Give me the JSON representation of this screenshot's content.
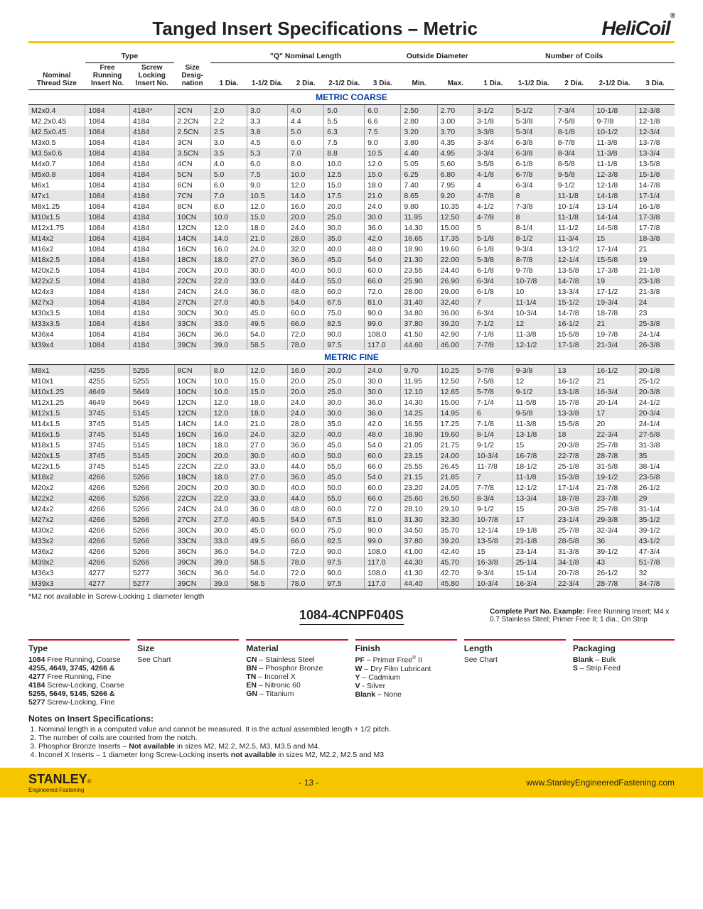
{
  "header": {
    "title": "Tanged Insert Specifications – Metric",
    "brand": "HeliCoil",
    "brand_reg": "®"
  },
  "table": {
    "group_headers": [
      "Type",
      "\"Q\" Nominal Length",
      "Outside Diameter",
      "Number of Coils"
    ],
    "col_headers": {
      "nominal": "Nominal Thread Size",
      "free": "Free Running Insert No.",
      "screw": "Screw Locking Insert No.",
      "size": "Size Desig- nation",
      "d1": "1 Dia.",
      "d15": "1-1/2 Dia.",
      "d2": "2 Dia.",
      "d25": "2-1/2 Dia.",
      "d3": "3 Dia.",
      "min": "Min.",
      "max": "Max.",
      "c1": "1 Dia.",
      "c15": "1-1/2 Dia.",
      "c2": "2 Dia.",
      "c25": "2-1/2 Dia.",
      "c3": "3 Dia."
    },
    "section1": "METRIC COARSE",
    "section2": "METRIC FINE",
    "coarse": [
      [
        "M2x0.4",
        "1084",
        "4184*",
        "2CN",
        "2.0",
        "3.0",
        "4.0",
        "5.0",
        "6.0",
        "2.50",
        "2.70",
        "3-1/2",
        "5-1/2",
        "7-3/4",
        "10-1/8",
        "12-3/8"
      ],
      [
        "M2.2x0.45",
        "1084",
        "4184",
        "2.2CN",
        "2.2",
        "3.3",
        "4.4",
        "5.5",
        "6.6",
        "2.80",
        "3.00",
        "3-1/8",
        "5-3/8",
        "7-5/8",
        "9-7/8",
        "12-1/8"
      ],
      [
        "M2.5x0.45",
        "1084",
        "4184",
        "2.5CN",
        "2.5",
        "3.8",
        "5.0",
        "6.3",
        "7.5",
        "3.20",
        "3.70",
        "3-3/8",
        "5-3/4",
        "8-1/8",
        "10-1/2",
        "12-3/4"
      ],
      [
        "M3x0.5",
        "1084",
        "4184",
        "3CN",
        "3.0",
        "4.5",
        "6.0",
        "7.5",
        "9.0",
        "3.80",
        "4.35",
        "3-3/4",
        "6-3/8",
        "8-7/8",
        "11-3/8",
        "13-7/8"
      ],
      [
        "M3.5x0.6",
        "1084",
        "4184",
        "3.5CN",
        "3.5",
        "5.3",
        "7.0",
        "8.8",
        "10.5",
        "4.40",
        "4.95",
        "3-3/4",
        "6-3/8",
        "8-3/4",
        "11-3/8",
        "13-3/4"
      ],
      [
        "M4x0.7",
        "1084",
        "4184",
        "4CN",
        "4.0",
        "6.0",
        "8.0",
        "10.0",
        "12.0",
        "5.05",
        "5.60",
        "3-5/8",
        "6-1/8",
        "8-5/8",
        "11-1/8",
        "13-5/8"
      ],
      [
        "M5x0.8",
        "1084",
        "4184",
        "5CN",
        "5.0",
        "7.5",
        "10.0",
        "12.5",
        "15.0",
        "6.25",
        "6.80",
        "4-1/8",
        "6-7/8",
        "9-5/8",
        "12-3/8",
        "15-1/8"
      ],
      [
        "M6x1",
        "1084",
        "4184",
        "6CN",
        "6.0",
        "9.0",
        "12.0",
        "15.0",
        "18.0",
        "7.40",
        "7.95",
        "4",
        "6-3/4",
        "9-1/2",
        "12-1/8",
        "14-7/8"
      ],
      [
        "M7x1",
        "1084",
        "4184",
        "7CN",
        "7.0",
        "10.5",
        "14.0",
        "17.5",
        "21.0",
        "8.65",
        "9.20",
        "4-7/8",
        "8",
        "11-1/8",
        "14-1/8",
        "17-1/4"
      ],
      [
        "M8x1.25",
        "1084",
        "4184",
        "8CN",
        "8.0",
        "12.0",
        "16.0",
        "20.0",
        "24.0",
        "9.80",
        "10.35",
        "4-1/2",
        "7-3/8",
        "10-1/4",
        "13-1/4",
        "16-1/8"
      ],
      [
        "M10x1.5",
        "1084",
        "4184",
        "10CN",
        "10.0",
        "15.0",
        "20.0",
        "25.0",
        "30.0",
        "11.95",
        "12.50",
        "4-7/8",
        "8",
        "11-1/8",
        "14-1/4",
        "17-3/8"
      ],
      [
        "M12x1.75",
        "1084",
        "4184",
        "12CN",
        "12.0",
        "18.0",
        "24.0",
        "30.0",
        "36.0",
        "14.30",
        "15.00",
        "5",
        "8-1/4",
        "11-1/2",
        "14-5/8",
        "17-7/8"
      ],
      [
        "M14x2",
        "1084",
        "4184",
        "14CN",
        "14.0",
        "21.0",
        "28.0",
        "35.0",
        "42.0",
        "16.65",
        "17.35",
        "5-1/8",
        "8-1/2",
        "11-3/4",
        "15",
        "18-3/8"
      ],
      [
        "M16x2",
        "1084",
        "4184",
        "16CN",
        "16.0",
        "24.0",
        "32.0",
        "40.0",
        "48.0",
        "18.90",
        "19.60",
        "6-1/8",
        "9-3/4",
        "13-1/2",
        "17-1/4",
        "21"
      ],
      [
        "M18x2.5",
        "1084",
        "4184",
        "18CN",
        "18.0",
        "27.0",
        "36.0",
        "45.0",
        "54.0",
        "21.30",
        "22.00",
        "5-3/8",
        "8-7/8",
        "12-1/4",
        "15-5/8",
        "19"
      ],
      [
        "M20x2.5",
        "1084",
        "4184",
        "20CN",
        "20.0",
        "30.0",
        "40.0",
        "50.0",
        "60.0",
        "23.55",
        "24.40",
        "6-1/8",
        "9-7/8",
        "13-5/8",
        "17-3/8",
        "21-1/8"
      ],
      [
        "M22x2.5",
        "1084",
        "4184",
        "22CN",
        "22.0",
        "33.0",
        "44.0",
        "55.0",
        "66.0",
        "25.90",
        "26.90",
        "6-3/4",
        "10-7/8",
        "14-7/8",
        "19",
        "23-1/8"
      ],
      [
        "M24x3",
        "1084",
        "4184",
        "24CN",
        "24.0",
        "36.0",
        "48.0",
        "60.0",
        "72.0",
        "28.00",
        "29.00",
        "6-1/8",
        "10",
        "13-3/4",
        "17-1/2",
        "21-3/8"
      ],
      [
        "M27x3",
        "1084",
        "4184",
        "27CN",
        "27.0",
        "40.5",
        "54.0",
        "67.5",
        "81.0",
        "31.40",
        "32.40",
        "7",
        "11-1/4",
        "15-1/2",
        "19-3/4",
        "24"
      ],
      [
        "M30x3.5",
        "1084",
        "4184",
        "30CN",
        "30.0",
        "45.0",
        "60.0",
        "75.0",
        "90.0",
        "34.80",
        "36.00",
        "6-3/4",
        "10-3/4",
        "14-7/8",
        "18-7/8",
        "23"
      ],
      [
        "M33x3.5",
        "1084",
        "4184",
        "33CN",
        "33.0",
        "49.5",
        "66.0",
        "82.5",
        "99.0",
        "37.80",
        "39.20",
        "7-1/2",
        "12",
        "16-1/2",
        "21",
        "25-3/8"
      ],
      [
        "M36x4",
        "1084",
        "4184",
        "36CN",
        "36.0",
        "54.0",
        "72.0",
        "90.0",
        "108.0",
        "41.50",
        "42.90",
        "7-1/8",
        "11-3/8",
        "15-5/8",
        "19-7/8",
        "24-1/4"
      ],
      [
        "M39x4",
        "1084",
        "4184",
        "39CN",
        "39.0",
        "58.5",
        "78.0",
        "97.5",
        "117.0",
        "44.60",
        "46.00",
        "7-7/8",
        "12-1/2",
        "17-1/8",
        "21-3/4",
        "26-3/8"
      ]
    ],
    "fine": [
      [
        "M8x1",
        "4255",
        "5255",
        "8CN",
        "8.0",
        "12.0",
        "16.0",
        "20.0",
        "24.0",
        "9.70",
        "10.25",
        "5-7/8",
        "9-3/8",
        "13",
        "16-1/2",
        "20-1/8"
      ],
      [
        "M10x1",
        "4255",
        "5255",
        "10CN",
        "10.0",
        "15.0",
        "20.0",
        "25.0",
        "30.0",
        "11.95",
        "12.50",
        "7-5/8",
        "12",
        "16-1/2",
        "21",
        "25-1/2"
      ],
      [
        "M10x1.25",
        "4649",
        "5649",
        "10CN",
        "10.0",
        "15.0",
        "20.0",
        "25.0",
        "30.0",
        "12.10",
        "12.65",
        "5-7/8",
        "9-1/2",
        "13-1/8",
        "16-3/4",
        "20-3/8"
      ],
      [
        "M12x1.25",
        "4649",
        "5649",
        "12CN",
        "12.0",
        "18.0",
        "24.0",
        "30.0",
        "36.0",
        "14.30",
        "15.00",
        "7-1/4",
        "11-5/8",
        "15-7/8",
        "20-1/4",
        "24-1/2"
      ],
      [
        "M12x1.5",
        "3745",
        "5145",
        "12CN",
        "12.0",
        "18.0",
        "24.0",
        "30.0",
        "36.0",
        "14.25",
        "14.95",
        "6",
        "9-5/8",
        "13-3/8",
        "17",
        "20-3/4"
      ],
      [
        "M14x1.5",
        "3745",
        "5145",
        "14CN",
        "14.0",
        "21.0",
        "28.0",
        "35.0",
        "42.0",
        "16.55",
        "17.25",
        "7-1/8",
        "11-3/8",
        "15-5/8",
        "20",
        "24-1/4"
      ],
      [
        "M16x1.5",
        "3745",
        "5145",
        "16CN",
        "16.0",
        "24.0",
        "32.0",
        "40.0",
        "48.0",
        "18.90",
        "19.60",
        "8-1/4",
        "13-1/8",
        "18",
        "22-3/4",
        "27-5/8"
      ],
      [
        "M18x1.5",
        "3745",
        "5145",
        "18CN",
        "18.0",
        "27.0",
        "36.0",
        "45.0",
        "54.0",
        "21.05",
        "21.75",
        "9-1/2",
        "15",
        "20-3/8",
        "25-7/8",
        "31-3/8"
      ],
      [
        "M20x1.5",
        "3745",
        "5145",
        "20CN",
        "20.0",
        "30.0",
        "40.0",
        "50.0",
        "60.0",
        "23.15",
        "24.00",
        "10-3/4",
        "16-7/8",
        "22-7/8",
        "28-7/8",
        "35"
      ],
      [
        "M22x1.5",
        "3745",
        "5145",
        "22CN",
        "22.0",
        "33.0",
        "44.0",
        "55.0",
        "66.0",
        "25.55",
        "26.45",
        "11-7/8",
        "18-1/2",
        "25-1/8",
        "31-5/8",
        "38-1/4"
      ],
      [
        "M18x2",
        "4266",
        "5266",
        "18CN",
        "18.0",
        "27.0",
        "36.0",
        "45.0",
        "54.0",
        "21.15",
        "21.85",
        "7",
        "11-1/8",
        "15-3/8",
        "19-1/2",
        "23-5/8"
      ],
      [
        "M20x2",
        "4266",
        "5266",
        "20CN",
        "20.0",
        "30.0",
        "40.0",
        "50.0",
        "60.0",
        "23.20",
        "24.05",
        "7-7/8",
        "12-1/2",
        "17-1/4",
        "21-7/8",
        "26-1/2"
      ],
      [
        "M22x2",
        "4266",
        "5266",
        "22CN",
        "22.0",
        "33.0",
        "44.0",
        "55.0",
        "66.0",
        "25.60",
        "26.50",
        "8-3/4",
        "13-3/4",
        "18-7/8",
        "23-7/8",
        "29"
      ],
      [
        "M24x2",
        "4266",
        "5266",
        "24CN",
        "24.0",
        "36.0",
        "48.0",
        "60.0",
        "72.0",
        "28.10",
        "29.10",
        "9-1/2",
        "15",
        "20-3/8",
        "25-7/8",
        "31-1/4"
      ],
      [
        "M27x2",
        "4266",
        "5266",
        "27CN",
        "27.0",
        "40.5",
        "54.0",
        "67.5",
        "81.0",
        "31.30",
        "32.30",
        "10-7/8",
        "17",
        "23-1/4",
        "29-3/8",
        "35-1/2"
      ],
      [
        "M30x2",
        "4266",
        "5266",
        "30CN",
        "30.0",
        "45.0",
        "60.0",
        "75.0",
        "90.0",
        "34.50",
        "35.70",
        "12-1/4",
        "19-1/8",
        "25-7/8",
        "32-3/4",
        "39-1/2"
      ],
      [
        "M33x2",
        "4266",
        "5266",
        "33CN",
        "33.0",
        "49.5",
        "66.0",
        "82.5",
        "99.0",
        "37.80",
        "39.20",
        "13-5/8",
        "21-1/8",
        "28-5/8",
        "36",
        "43-1/2"
      ],
      [
        "M36x2",
        "4266",
        "5266",
        "36CN",
        "36.0",
        "54.0",
        "72.0",
        "90.0",
        "108.0",
        "41.00",
        "42.40",
        "15",
        "23-1/4",
        "31-3/8",
        "39-1/2",
        "47-3/4"
      ],
      [
        "M39x2",
        "4266",
        "5266",
        "39CN",
        "39.0",
        "58.5",
        "78.0",
        "97.5",
        "117.0",
        "44.30",
        "45.70",
        "16-3/8",
        "25-1/4",
        "34-1/8",
        "43",
        "51-7/8"
      ],
      [
        "M36x3",
        "4277",
        "5277",
        "36CN",
        "36.0",
        "54.0",
        "72.0",
        "90.0",
        "108.0",
        "41.30",
        "42.70",
        "9-3/4",
        "15-1/4",
        "20-7/8",
        "26-1/2",
        "32"
      ],
      [
        "M39x3",
        "4277",
        "5277",
        "39CN",
        "39.0",
        "58.5",
        "78.0",
        "97.5",
        "117.0",
        "44.40",
        "45.80",
        "10-3/4",
        "16-3/4",
        "22-3/4",
        "28-7/8",
        "34-7/8"
      ]
    ],
    "footnote": "*M2 not available in Screw-Locking 1 diameter length"
  },
  "pn": {
    "part_no": "1084-4CNPF040S",
    "example_label": "Complete Part No. Example:",
    "example_text": " Free Running Insert; M4 x 0.7 Stainless Steel; Primer Free II; 1 dia.; On Strip",
    "cols": [
      {
        "head": "Type",
        "rows": [
          "<b>1084</b> Free Running, Coarse",
          "<b>4255, 4649, 3745, 4266 &</b>",
          "<b>4277</b> Free Running, Fine",
          "<b>4184</b> Screw-Locking, Coarse",
          "<b>5255, 5649, 5145, 5266 &</b>",
          "<b>5277</b> Screw-Locking, Fine"
        ]
      },
      {
        "head": "Size",
        "rows": [
          "See Chart"
        ]
      },
      {
        "head": "Material",
        "rows": [
          "<b>CN</b> – Stainless Steel",
          "<b>BN</b> – Phosphor Bronze",
          "<b>TN</b> – Inconel X",
          "<b>EN</b> – Nitronic 60",
          "<b>GN</b> – Titanium"
        ]
      },
      {
        "head": "Finish",
        "rows": [
          "<b>PF</b> – Primer Free<sup class='reg'>®</sup> II",
          "<b>W</b> – Dry Film Lubricant",
          "<b>Y</b> – Cadmium",
          "<b>V</b> - Silver",
          "<b>Blank</b> – None"
        ]
      },
      {
        "head": "Length",
        "rows": [
          "See Chart"
        ]
      },
      {
        "head": "Packaging",
        "rows": [
          "<b>Blank</b> – Bulk",
          "<b>S</b> – Strip Feed"
        ]
      }
    ]
  },
  "notes": {
    "title": "Notes on Insert Specifications:",
    "items": [
      "Nominal length is a computed value and cannot be measured. It is the actual assembled length + 1/2 pitch.",
      "The number of coils are counted from the notch.",
      "Phosphor Bronze Inserts – <b>Not available</b> in sizes M2, M2.2, M2.5, M3, M3.5 and M4.",
      "Inconel X Inserts – 1 diameter long Screw-Locking inserts <b>not available</b> in sizes M2, M2.2, M2.5 and M3"
    ]
  },
  "footer": {
    "stanley": "STANLEY",
    "stanley_sub": "Engineered Fastening",
    "page": "- 13 -",
    "url": "www.StanleyEngineeredFastening.com"
  },
  "colors": {
    "accent": "#f7c600",
    "blue": "#003da5",
    "red": "#c8102e",
    "alt_row": "#e6e5e5"
  }
}
